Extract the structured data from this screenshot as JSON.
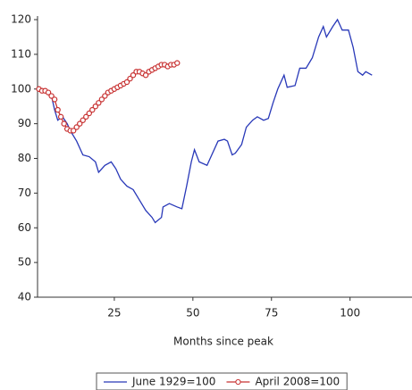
{
  "chart_data": {
    "type": "line",
    "xlabel": "Months since peak",
    "xlim": [
      0,
      120
    ],
    "xticks": [
      25,
      50,
      75,
      100
    ],
    "ylim": [
      40,
      120
    ],
    "yticks": [
      40,
      50,
      60,
      70,
      80,
      90,
      100,
      110,
      120
    ],
    "legend": "bottom",
    "series": [
      {
        "name": "June 1929=100",
        "color": "#2838b8",
        "marker": "none",
        "x": [
          0.5,
          3,
          5,
          6,
          7,
          8.5,
          10,
          11,
          13,
          15,
          17,
          19,
          20,
          22,
          24,
          25.5,
          27,
          29,
          31,
          33,
          35,
          37,
          38,
          40,
          40.5,
          42.5,
          45,
          46.5,
          48,
          49.5,
          50.5,
          52,
          54.5,
          55.5,
          58,
          60,
          61,
          62.5,
          63.5,
          65.5,
          67,
          69,
          70.5,
          72.5,
          74,
          75.5,
          77,
          79,
          80,
          82.5,
          84,
          86,
          88,
          90,
          91.5,
          92.5,
          94.5,
          96,
          97.5,
          99.5,
          101,
          102.5,
          104,
          105,
          107
        ],
        "values": [
          100,
          99,
          98,
          94,
          91,
          92,
          90,
          88,
          85,
          81,
          80.5,
          79,
          76,
          78,
          79,
          77,
          74,
          72,
          71,
          68,
          65,
          63,
          61.5,
          63,
          66,
          67,
          66,
          65.5,
          72,
          79,
          82.5,
          79,
          78,
          80,
          85,
          85.5,
          85,
          81,
          81.5,
          84,
          89,
          91,
          92,
          91,
          91.5,
          96,
          100,
          104,
          100.5,
          101,
          106,
          106,
          109,
          115,
          118,
          115,
          118,
          120,
          117,
          117,
          112,
          105,
          104,
          105,
          104
        ]
      },
      {
        "name": "April 2008=100",
        "color": "#c83232",
        "marker": "circle",
        "x": [
          1,
          2,
          3,
          4,
          5,
          6,
          7,
          8,
          9,
          10,
          11,
          12,
          13,
          14,
          15,
          16,
          17,
          18,
          19,
          20,
          21,
          22,
          23,
          24,
          25,
          26,
          27,
          28,
          29,
          30,
          31,
          32,
          33,
          34,
          35,
          36,
          37,
          38,
          39,
          40,
          41,
          42,
          43,
          44,
          45
        ],
        "values": [
          100,
          99.5,
          99.5,
          99,
          98,
          97,
          94,
          92,
          90,
          88.5,
          88,
          88,
          89,
          90,
          91,
          92,
          93,
          94,
          95,
          96,
          97,
          98,
          99,
          99.5,
          100,
          100.5,
          101,
          101.5,
          102,
          103,
          104,
          105,
          105,
          104.5,
          104,
          105,
          105.5,
          106,
          106.5,
          107,
          107,
          106.5,
          107,
          107,
          107.5
        ]
      }
    ]
  }
}
